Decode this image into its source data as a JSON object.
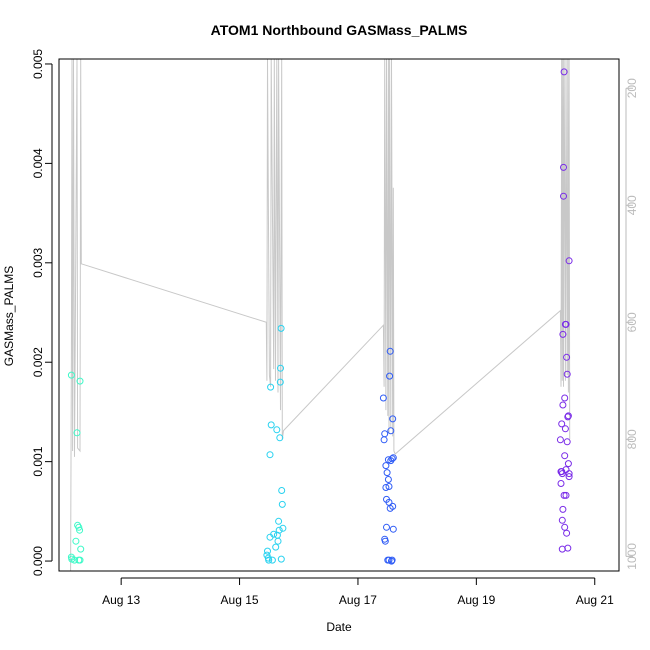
{
  "chart_data": {
    "type": "scatter",
    "title": "ATOM1 Northbound GASMass_PALMS",
    "xlabel": "Date",
    "ylabel": "GASMass_PALMS",
    "xlim": [
      "2016-08-11T22:48",
      "2016-08-21T09:50"
    ],
    "ylim": [
      -0.0001,
      0.00505
    ],
    "x_ticks": [
      {
        "x": "2016-08-13",
        "label": "Aug 13"
      },
      {
        "x": "2016-08-15",
        "label": "Aug 15"
      },
      {
        "x": "2016-08-17",
        "label": "Aug 17"
      },
      {
        "x": "2016-08-19",
        "label": "Aug 19"
      },
      {
        "x": "2016-08-21",
        "label": "Aug 21"
      }
    ],
    "y_ticks": [
      0.0,
      0.001,
      0.002,
      0.003,
      0.004,
      0.005
    ],
    "y_tick_labels": [
      "0.000",
      "0.001",
      "0.002",
      "0.003",
      "0.004",
      "0.005"
    ],
    "y2_ylim": [
      1025,
      150
    ],
    "y2_ticks": [
      200,
      400,
      600,
      800,
      1000
    ],
    "grid": false,
    "series": [
      {
        "color": "#3ef9c8",
        "points": [
          {
            "x": "2016-08-12T03:50",
            "y": 0.00187
          },
          {
            "x": "2016-08-12T03:50",
            "y": 4e-05
          },
          {
            "x": "2016-08-12T04:00",
            "y": 2e-05
          },
          {
            "x": "2016-08-12T05:05",
            "y": 1e-05
          },
          {
            "x": "2016-08-12T05:40",
            "y": 0.0002
          },
          {
            "x": "2016-08-12T06:05",
            "y": 0.00129
          },
          {
            "x": "2016-08-12T06:20",
            "y": 0.00036
          },
          {
            "x": "2016-08-12T06:50",
            "y": 0.00034
          },
          {
            "x": "2016-08-12T07:10",
            "y": 0.00031
          },
          {
            "x": "2016-08-12T07:20",
            "y": 0.00181
          },
          {
            "x": "2016-08-12T07:20",
            "y": 1e-05
          },
          {
            "x": "2016-08-12T07:35",
            "y": 0.00012
          },
          {
            "x": "2016-08-12T06:50",
            "y": 1e-05
          }
        ]
      },
      {
        "color": "#28d2f0",
        "points": [
          {
            "x": "2016-08-15T11:05",
            "y": 6e-05
          },
          {
            "x": "2016-08-15T11:20",
            "y": 0.0001
          },
          {
            "x": "2016-08-15T11:40",
            "y": 3e-05
          },
          {
            "x": "2016-08-15T11:50",
            "y": 1e-05
          },
          {
            "x": "2016-08-15T12:20",
            "y": 0.00024
          },
          {
            "x": "2016-08-15T12:20",
            "y": 0.00107
          },
          {
            "x": "2016-08-15T12:35",
            "y": 0.00175
          },
          {
            "x": "2016-08-15T12:50",
            "y": 0.00137
          },
          {
            "x": "2016-08-15T13:20",
            "y": 1e-05
          },
          {
            "x": "2016-08-15T13:50",
            "y": 0.00027
          },
          {
            "x": "2016-08-15T14:40",
            "y": 0.00014
          },
          {
            "x": "2016-08-15T15:05",
            "y": 0.00132
          },
          {
            "x": "2016-08-15T15:35",
            "y": 0.0002
          },
          {
            "x": "2016-08-15T15:50",
            "y": 0.0004
          },
          {
            "x": "2016-08-15T16:20",
            "y": 0.00124
          },
          {
            "x": "2016-08-15T16:30",
            "y": 0.0018
          },
          {
            "x": "2016-08-15T16:35",
            "y": 0.00194
          },
          {
            "x": "2016-08-15T16:50",
            "y": 0.00234
          },
          {
            "x": "2016-08-15T17:05",
            "y": 0.00071
          },
          {
            "x": "2016-08-15T17:20",
            "y": 0.00057
          },
          {
            "x": "2016-08-15T17:35",
            "y": 0.00033
          },
          {
            "x": "2016-08-15T16:55",
            "y": 2e-05
          },
          {
            "x": "2016-08-15T15:20",
            "y": 0.00026
          },
          {
            "x": "2016-08-15T16:05",
            "y": 0.00031
          }
        ]
      },
      {
        "color": "#2f5cf6",
        "points": [
          {
            "x": "2016-08-17T10:20",
            "y": 0.00164
          },
          {
            "x": "2016-08-17T10:35",
            "y": 0.00122
          },
          {
            "x": "2016-08-17T10:50",
            "y": 0.00128
          },
          {
            "x": "2016-08-17T10:50",
            "y": 0.00022
          },
          {
            "x": "2016-08-17T11:05",
            "y": 0.0002
          },
          {
            "x": "2016-08-17T11:20",
            "y": 0.00096
          },
          {
            "x": "2016-08-17T11:20",
            "y": 0.00074
          },
          {
            "x": "2016-08-17T11:35",
            "y": 0.00062
          },
          {
            "x": "2016-08-17T11:35",
            "y": 0.00034
          },
          {
            "x": "2016-08-17T11:50",
            "y": 0.00089
          },
          {
            "x": "2016-08-17T12:05",
            "y": 1e-05
          },
          {
            "x": "2016-08-17T12:20",
            "y": 0.00102
          },
          {
            "x": "2016-08-17T12:20",
            "y": 0.00082
          },
          {
            "x": "2016-08-17T12:35",
            "y": 0.00075
          },
          {
            "x": "2016-08-17T12:35",
            "y": 0.00059
          },
          {
            "x": "2016-08-17T12:50",
            "y": 0.00186
          },
          {
            "x": "2016-08-17T13:05",
            "y": 0.00211
          },
          {
            "x": "2016-08-17T13:05",
            "y": 0.00053
          },
          {
            "x": "2016-08-17T13:20",
            "y": 0.00131
          },
          {
            "x": "2016-08-17T13:20",
            "y": 0.00101
          },
          {
            "x": "2016-08-17T13:35",
            "y": 0.0
          },
          {
            "x": "2016-08-17T13:50",
            "y": 0.00103
          },
          {
            "x": "2016-08-17T14:05",
            "y": 0.00143
          },
          {
            "x": "2016-08-17T14:05",
            "y": 0.00055
          },
          {
            "x": "2016-08-17T14:20",
            "y": 0.00104
          },
          {
            "x": "2016-08-17T14:20",
            "y": 0.00032
          },
          {
            "x": "2016-08-17T13:50",
            "y": 1e-05
          },
          {
            "x": "2016-08-17T12:35",
            "y": 1e-05
          }
        ]
      },
      {
        "color": "#7a2ce8",
        "points": [
          {
            "x": "2016-08-20T10:05",
            "y": 0.00122
          },
          {
            "x": "2016-08-20T10:20",
            "y": 0.0009
          },
          {
            "x": "2016-08-20T10:20",
            "y": 0.00078
          },
          {
            "x": "2016-08-20T10:35",
            "y": 0.00138
          },
          {
            "x": "2016-08-20T10:35",
            "y": 0.0009
          },
          {
            "x": "2016-08-20T10:50",
            "y": 0.00088
          },
          {
            "x": "2016-08-20T10:50",
            "y": 0.00041
          },
          {
            "x": "2016-08-20T10:50",
            "y": 0.00012
          },
          {
            "x": "2016-08-20T11:05",
            "y": 0.00157
          },
          {
            "x": "2016-08-20T11:05",
            "y": 0.00052
          },
          {
            "x": "2016-08-20T11:05",
            "y": 0.00228
          },
          {
            "x": "2016-08-20T11:20",
            "y": 0.00396
          },
          {
            "x": "2016-08-20T11:20",
            "y": 0.00367
          },
          {
            "x": "2016-08-20T11:35",
            "y": 0.00492
          },
          {
            "x": "2016-08-20T11:35",
            "y": 0.00066
          },
          {
            "x": "2016-08-20T11:50",
            "y": 0.00164
          },
          {
            "x": "2016-08-20T11:50",
            "y": 0.00106
          },
          {
            "x": "2016-08-20T11:50",
            "y": 0.00034
          },
          {
            "x": "2016-08-20T12:05",
            "y": 0.00133
          },
          {
            "x": "2016-08-20T12:05",
            "y": 0.00238
          },
          {
            "x": "2016-08-20T12:20",
            "y": 0.00238
          },
          {
            "x": "2016-08-20T12:20",
            "y": 0.00092
          },
          {
            "x": "2016-08-20T12:20",
            "y": 0.00066
          },
          {
            "x": "2016-08-20T12:35",
            "y": 0.00205
          },
          {
            "x": "2016-08-20T12:35",
            "y": 0.00028
          },
          {
            "x": "2016-08-20T12:50",
            "y": 0.00188
          },
          {
            "x": "2016-08-20T12:50",
            "y": 0.0012
          },
          {
            "x": "2016-08-20T13:05",
            "y": 0.00145
          },
          {
            "x": "2016-08-20T13:05",
            "y": 0.00013
          },
          {
            "x": "2016-08-20T13:20",
            "y": 0.00146
          },
          {
            "x": "2016-08-20T13:20",
            "y": 0.00098
          },
          {
            "x": "2016-08-20T13:35",
            "y": 0.00302
          },
          {
            "x": "2016-08-20T13:35",
            "y": 0.00088
          },
          {
            "x": "2016-08-20T13:35",
            "y": 0.00085
          }
        ]
      }
    ],
    "pressure_trace": {
      "color": "#c8c8c8",
      "segments": [
        [
          [
            "2016-08-12T03:30",
            1025
          ],
          [
            "2016-08-12T03:50",
            650
          ],
          [
            "2016-08-12T04:05",
            150
          ],
          [
            "2016-08-12T04:20",
            820
          ],
          [
            "2016-08-12T04:40",
            150
          ],
          [
            "2016-08-12T05:05",
            830
          ],
          [
            "2016-08-12T06:05",
            150
          ],
          [
            "2016-08-12T06:20",
            815
          ],
          [
            "2016-08-12T07:20",
            820
          ],
          [
            "2016-08-12T07:35",
            150
          ],
          [
            "2016-08-12T07:50",
            500
          ],
          [
            "2016-08-15T10:50",
            600
          ],
          [
            "2016-08-15T11:05",
            700
          ],
          [
            "2016-08-15T11:20",
            150
          ],
          [
            "2016-08-15T12:05",
            690
          ],
          [
            "2016-08-15T12:35",
            710
          ],
          [
            "2016-08-15T12:50",
            150
          ],
          [
            "2016-08-15T13:50",
            680
          ],
          [
            "2016-08-15T14:05",
            150
          ],
          [
            "2016-08-15T14:35",
            700
          ],
          [
            "2016-08-15T15:05",
            150
          ],
          [
            "2016-08-15T15:35",
            720
          ],
          [
            "2016-08-15T15:50",
            150
          ],
          [
            "2016-08-15T16:35",
            750
          ],
          [
            "2016-08-15T17:05",
            150
          ],
          [
            "2016-08-15T17:20",
            800
          ],
          [
            "2016-08-15T17:50",
            785
          ],
          [
            "2016-08-17T10:20",
            605
          ],
          [
            "2016-08-17T10:35",
            710
          ],
          [
            "2016-08-17T10:50",
            150
          ],
          [
            "2016-08-17T11:20",
            750
          ],
          [
            "2016-08-17T11:35",
            150
          ],
          [
            "2016-08-17T12:05",
            760
          ],
          [
            "2016-08-17T12:20",
            150
          ],
          [
            "2016-08-17T12:35",
            790
          ],
          [
            "2016-08-17T12:50",
            150
          ],
          [
            "2016-08-17T13:20",
            780
          ],
          [
            "2016-08-17T13:35",
            150
          ],
          [
            "2016-08-17T14:05",
            795
          ],
          [
            "2016-08-17T14:20",
            370
          ],
          [
            "2016-08-17T14:35",
            820
          ],
          [
            "2016-08-17T15:05",
            825
          ],
          [
            "2016-08-20T10:05",
            580
          ],
          [
            "2016-08-20T10:20",
            710
          ],
          [
            "2016-08-20T10:35",
            150
          ],
          [
            "2016-08-20T10:50",
            700
          ],
          [
            "2016-08-20T11:05",
            150
          ],
          [
            "2016-08-20T11:20",
            710
          ],
          [
            "2016-08-20T11:35",
            150
          ],
          [
            "2016-08-20T11:50",
            370
          ],
          [
            "2016-08-20T12:05",
            700
          ],
          [
            "2016-08-20T12:20",
            150
          ],
          [
            "2016-08-20T12:50",
            690
          ],
          [
            "2016-08-20T13:05",
            150
          ],
          [
            "2016-08-20T13:20",
            720
          ],
          [
            "2016-08-20T13:35",
            150
          ],
          [
            "2016-08-20T13:50",
            800
          ]
        ]
      ]
    }
  }
}
